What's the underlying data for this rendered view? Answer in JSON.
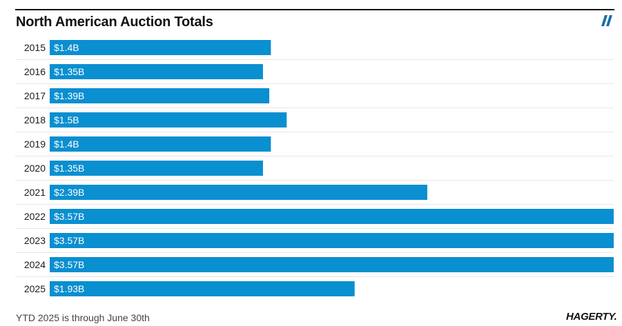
{
  "title": "North American Auction Totals",
  "footnote": "YTD 2025 is through June 30th",
  "logo": "HAGERTY.",
  "icons": {
    "brand_mark": "hagerty-slash-mark-icon"
  },
  "colors": {
    "bar": "#0a8fd0",
    "label_on_bar": "#ffffff",
    "text": "#1a1a1a",
    "separator": "#e6e6e6",
    "brand_mark": "#1c6fa8"
  },
  "chart_data": {
    "type": "bar",
    "orientation": "horizontal",
    "title": "North American Auction Totals",
    "xlabel": "",
    "ylabel": "",
    "xlim": [
      0,
      3.57
    ],
    "grid": false,
    "categories": [
      "2015",
      "2016",
      "2017",
      "2018",
      "2019",
      "2020",
      "2021",
      "2022",
      "2023",
      "2024",
      "2025"
    ],
    "values": [
      1.4,
      1.35,
      1.39,
      1.5,
      1.4,
      1.35,
      2.39,
      3.57,
      3.57,
      3.57,
      1.93
    ],
    "value_labels": [
      "$1.4B",
      "$1.35B",
      "$1.39B",
      "$1.5B",
      "$1.4B",
      "$1.35B",
      "$2.39B",
      "$3.57B",
      "$3.57B",
      "$3.57B",
      "$1.93B"
    ],
    "unit": "$B"
  }
}
